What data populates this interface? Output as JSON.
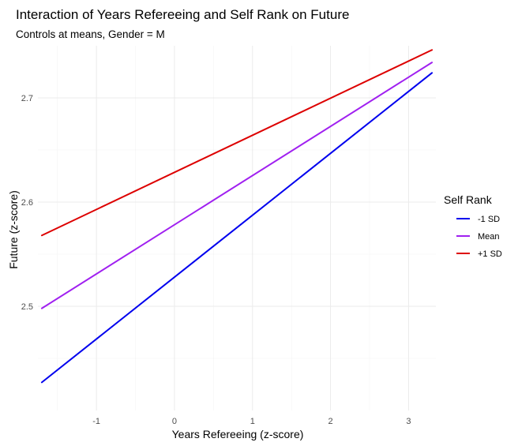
{
  "chart_data": {
    "type": "line",
    "title": "Interaction of Years Refereeing and Self Rank on Future",
    "subtitle": "Controls at means, Gender = M",
    "xlabel": "Years Refereeing (z-score)",
    "ylabel": "Future (z-score)",
    "xlim": [
      -1.75,
      3.35
    ],
    "ylim": [
      2.4,
      2.75
    ],
    "x_ticks": [
      -1,
      0,
      1,
      2,
      3
    ],
    "x_tick_labels": [
      "-1",
      "0",
      "1",
      "2",
      "3"
    ],
    "y_ticks": [
      2.5,
      2.6,
      2.7
    ],
    "y_tick_labels": [
      "2.5",
      "2.6",
      "2.7"
    ],
    "grid": true,
    "legend": {
      "title": "Self Rank",
      "placement": "right"
    },
    "series": [
      {
        "name": "-1 SD",
        "color": "#0000ee",
        "x": [
          -1.7,
          3.3
        ],
        "y": [
          2.427,
          2.724
        ]
      },
      {
        "name": "Mean",
        "color": "#a020f0",
        "x": [
          -1.7,
          3.3
        ],
        "y": [
          2.498,
          2.734
        ]
      },
      {
        "name": "+1 SD",
        "color": "#dd0000",
        "x": [
          -1.7,
          3.3
        ],
        "y": [
          2.568,
          2.746
        ]
      }
    ]
  }
}
